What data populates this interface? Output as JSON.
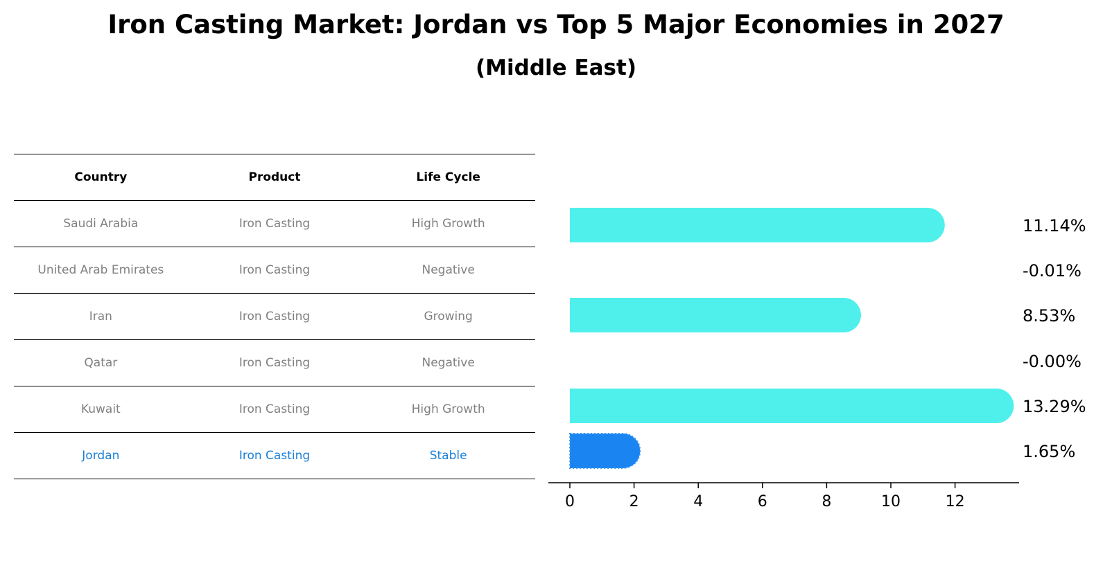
{
  "header": {
    "title": "Iron Casting Market: Jordan vs Top 5 Major Economies in 2027",
    "subtitle": "(Middle East)"
  },
  "table": {
    "columns": [
      "Country",
      "Product",
      "Life Cycle"
    ],
    "rows": [
      {
        "country": "Saudi Arabia",
        "product": "Iron Casting",
        "life_cycle": "High Growth"
      },
      {
        "country": "United Arab Emirates",
        "product": "Iron Casting",
        "life_cycle": "Negative"
      },
      {
        "country": "Iran",
        "product": "Iron Casting",
        "life_cycle": "Growing"
      },
      {
        "country": "Qatar",
        "product": "Iron Casting",
        "life_cycle": "Negative"
      },
      {
        "country": "Kuwait",
        "product": "Iron Casting",
        "life_cycle": "High Growth"
      },
      {
        "country": "Jordan",
        "product": "Iron Casting",
        "life_cycle": "Stable"
      }
    ],
    "highlight_row": "Jordan"
  },
  "chart_data": {
    "type": "bar",
    "orientation": "horizontal",
    "categories": [
      "Saudi Arabia",
      "United Arab Emirates",
      "Iran",
      "Qatar",
      "Kuwait",
      "Jordan"
    ],
    "values": [
      11.14,
      -0.01,
      8.53,
      -0.0,
      13.29,
      1.65
    ],
    "value_labels": [
      "11.14%",
      "-0.01%",
      "8.53%",
      "-0.00%",
      "13.29%",
      "1.65%"
    ],
    "xlim": [
      -0.7,
      14
    ],
    "xticks": [
      0,
      2,
      4,
      6,
      8,
      10,
      12
    ],
    "grid": false,
    "colors": {
      "default": "#4ff0ec",
      "highlight": "#1a85f0"
    },
    "highlight": "Jordan"
  }
}
